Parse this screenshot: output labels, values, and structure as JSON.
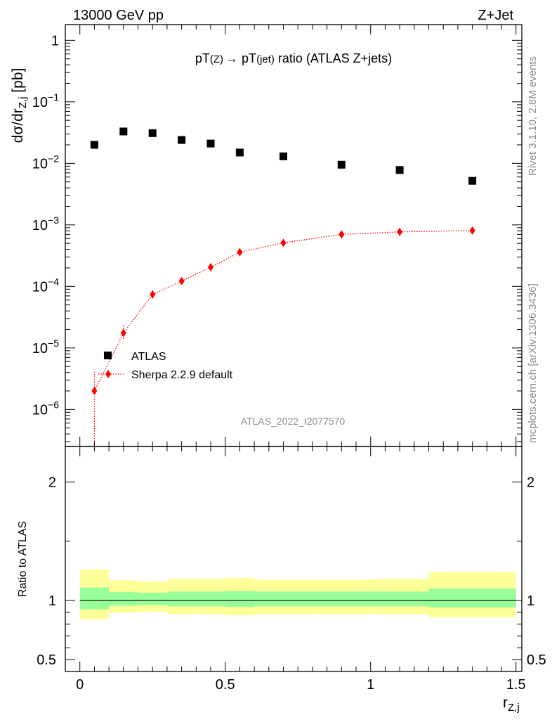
{
  "header": {
    "left_label": "13000 GeV pp",
    "right_label": "Z+Jet"
  },
  "side_text": {
    "rivet": "Rivet 3.1.10,  2.8M events",
    "mcplots": "mcplots.cern.ch [arXiv:1306.3436]"
  },
  "chart_data": [
    {
      "type": "scatter",
      "title_main": "pT",
      "title_sub1": "(Z)",
      "title_arrow": "→",
      "title_rest1": " pT",
      "title_sub2": "(jet)",
      "title_rest2": " ratio (ATLAS Z+jets)",
      "ylabel": "dσ/dr",
      "ylabel_sub": "Z,j",
      "ylabel_unit": " [pb]",
      "yscale": "log",
      "ylim": [
        2.5e-07,
        1.8
      ],
      "xlim": [
        -0.05,
        1.52
      ],
      "ytick_labels": [
        {
          "value": 1,
          "base": "1",
          "exp": ""
        },
        {
          "value": 0.1,
          "base": "10",
          "exp": "−1"
        },
        {
          "value": 0.01,
          "base": "10",
          "exp": "−2"
        },
        {
          "value": 0.001,
          "base": "10",
          "exp": "−3"
        },
        {
          "value": 0.0001,
          "base": "10",
          "exp": "−4"
        },
        {
          "value": 1e-05,
          "base": "10",
          "exp": "−5"
        },
        {
          "value": 1e-06,
          "base": "10",
          "exp": "−6"
        }
      ],
      "analysis_id": "ATLAS_2022_I2077570",
      "legend_position": "lower-left",
      "series": [
        {
          "name": "ATLAS",
          "marker": "square",
          "color": "#000000",
          "x": [
            0.05,
            0.15,
            0.25,
            0.35,
            0.45,
            0.55,
            0.7,
            0.9,
            1.1,
            1.35
          ],
          "y": [
            0.02,
            0.033,
            0.031,
            0.024,
            0.021,
            0.015,
            0.013,
            0.0095,
            0.0078,
            0.0052
          ]
        },
        {
          "name": "Sherpa 2.2.9 default",
          "marker": "diamond",
          "line": "dotted",
          "color": "#ff0000",
          "x": [
            0.05,
            0.15,
            0.25,
            0.35,
            0.45,
            0.55,
            0.7,
            0.9,
            1.1,
            1.35
          ],
          "y": [
            2e-06,
            1.75e-05,
            7.4e-05,
            0.000122,
            0.000205,
            0.00036,
            0.00051,
            0.0007,
            0.00077,
            0.00081
          ],
          "y_err_low": [
            1.9e-06,
            3.5e-06,
            1e-05,
            1.2e-05,
            1.5e-05,
            2e-05,
            2e-05,
            3e-05,
            3e-05,
            3e-05
          ],
          "y_err_high": [
            2.1e-06,
            6e-06,
            1.2e-05,
            1.2e-05,
            1.5e-05,
            2e-05,
            2e-05,
            3e-05,
            3e-05,
            3e-05
          ]
        }
      ]
    },
    {
      "type": "area",
      "ylabel": "Ratio to ATLAS",
      "xlabel": "r",
      "xlabel_sub": "Z,j",
      "xlim": [
        -0.05,
        1.52
      ],
      "ylim": [
        0.4,
        2.3
      ],
      "ytick_labels": [
        {
          "value": 2,
          "label": "2"
        },
        {
          "value": 1,
          "label": "1"
        },
        {
          "value": 0.5,
          "label": "0.5"
        }
      ],
      "xtick_labels": [
        {
          "value": 0,
          "label": "0"
        },
        {
          "value": 0.5,
          "label": "0.5"
        },
        {
          "value": 1,
          "label": "1"
        },
        {
          "value": 1.5,
          "label": "1.5"
        }
      ],
      "bin_edges": [
        0.0,
        0.1,
        0.2,
        0.3,
        0.4,
        0.5,
        0.6,
        0.8,
        1.0,
        1.2,
        1.5
      ],
      "band_stat": {
        "color": "#99ff99",
        "low": [
          0.925,
          0.955,
          0.96,
          0.95,
          0.95,
          0.945,
          0.95,
          0.95,
          0.95,
          0.94
        ],
        "high": [
          1.11,
          1.07,
          1.065,
          1.075,
          1.075,
          1.08,
          1.075,
          1.075,
          1.075,
          1.1
        ]
      },
      "band_total": {
        "color": "#ffff99",
        "low": [
          0.84,
          0.895,
          0.905,
          0.885,
          0.885,
          0.875,
          0.885,
          0.885,
          0.885,
          0.86
        ],
        "high": [
          1.26,
          1.17,
          1.16,
          1.18,
          1.18,
          1.19,
          1.175,
          1.175,
          1.18,
          1.24
        ]
      },
      "reference": 1.0
    }
  ]
}
